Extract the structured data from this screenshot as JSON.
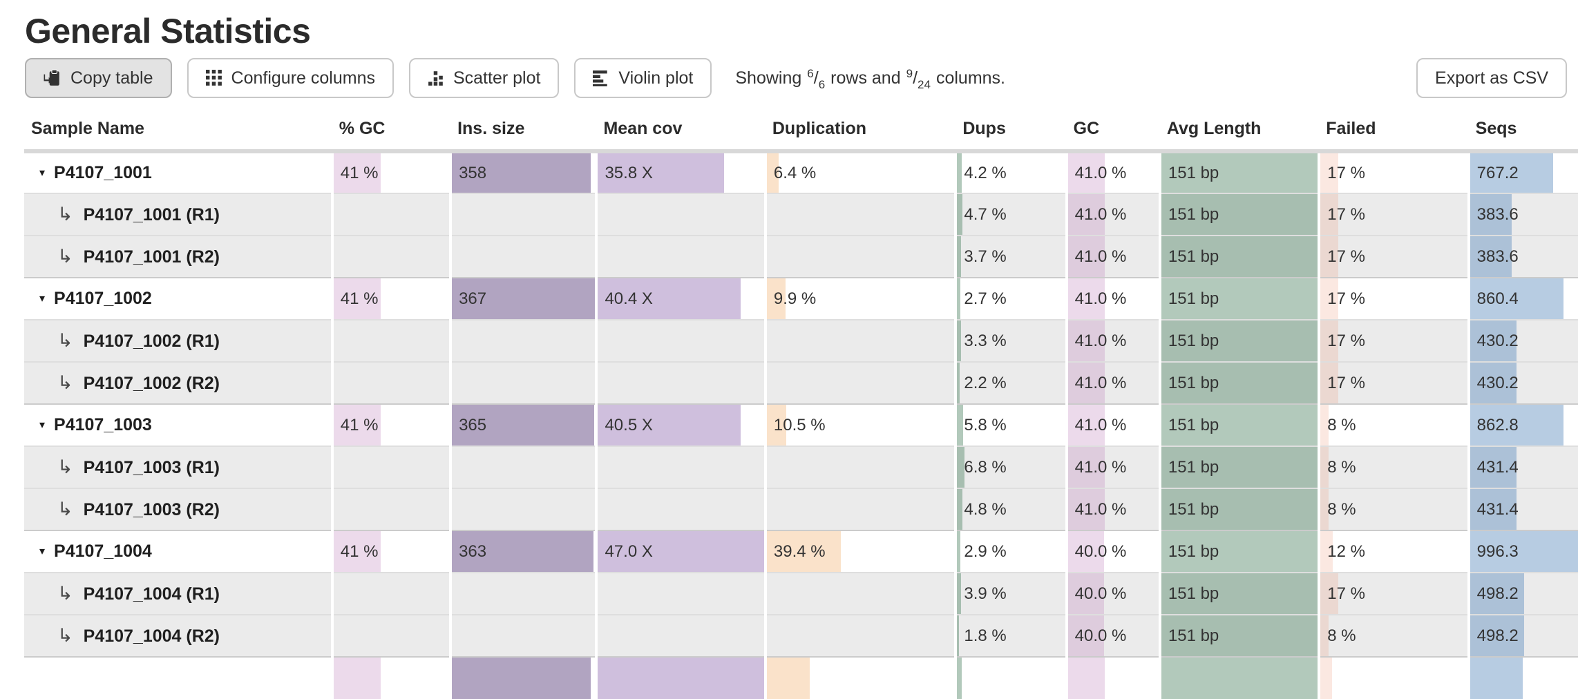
{
  "page": {
    "title": "General Statistics"
  },
  "toolbar": {
    "buttons": [
      {
        "label": "Copy table",
        "icon": "clipboard-icon",
        "active": true
      },
      {
        "label": "Configure columns",
        "icon": "grid-icon",
        "active": false
      },
      {
        "label": "Scatter plot",
        "icon": "scatter-icon",
        "active": false
      },
      {
        "label": "Violin plot",
        "icon": "violin-icon",
        "active": false
      }
    ],
    "showing": {
      "prefix": "Showing",
      "rows_shown": "6",
      "rows_total": "6",
      "between": "rows and",
      "cols_shown": "9",
      "cols_total": "24",
      "suffix": "columns."
    },
    "export_label": "Export as CSV"
  },
  "table": {
    "columns": [
      "Sample Name",
      "% GC",
      "Ins. size",
      "Mean cov",
      "Duplication",
      "Dups",
      "GC",
      "Avg Length",
      "Failed",
      "Seqs"
    ],
    "bar_colors": {
      "gc_pct": "rgba(193,132,190,0.30)",
      "ins_size": "rgba(99,73,131,0.50)",
      "mean_cov": "rgba(135,95,170,0.40)",
      "duplication": "rgba(240,173,103,0.35)",
      "dups": "rgba(84,135,104,0.45)",
      "gc": "rgba(193,132,190,0.30)",
      "avg_length": "rgba(84,135,104,0.45)",
      "failed": "rgba(235,150,120,0.22)",
      "seqs": "rgba(95,142,190,0.45)"
    },
    "rows": [
      {
        "name": "P4107_1001",
        "type": "main",
        "cells": [
          {
            "text": "41 %",
            "bar": 41,
            "color": "gc_pct"
          },
          {
            "text": "358",
            "bar": 97,
            "color": "ins_size"
          },
          {
            "text": "35.8 X",
            "bar": 76,
            "color": "mean_cov"
          },
          {
            "text": "6.4 %",
            "bar": 6.4,
            "color": "duplication"
          },
          {
            "text": "4.2 %",
            "bar": 4.2,
            "color": "dups"
          },
          {
            "text": "41.0 %",
            "bar": 41,
            "color": "gc"
          },
          {
            "text": "151 bp",
            "bar": 100,
            "color": "avg_length"
          },
          {
            "text": "17 %",
            "bar": 12,
            "color": "failed"
          },
          {
            "text": "767.2",
            "bar": 77,
            "color": "seqs"
          }
        ]
      },
      {
        "name": "P4107_1001 (R1)",
        "type": "sub",
        "cells": [
          null,
          null,
          null,
          null,
          {
            "text": "4.7 %",
            "bar": 4.7,
            "color": "dups"
          },
          {
            "text": "41.0 %",
            "bar": 41,
            "color": "gc"
          },
          {
            "text": "151 bp",
            "bar": 100,
            "color": "avg_length"
          },
          {
            "text": "17 %",
            "bar": 12,
            "color": "failed"
          },
          {
            "text": "383.6",
            "bar": 38.5,
            "color": "seqs"
          }
        ]
      },
      {
        "name": "P4107_1001 (R2)",
        "type": "sub",
        "cells": [
          null,
          null,
          null,
          null,
          {
            "text": "3.7 %",
            "bar": 3.7,
            "color": "dups"
          },
          {
            "text": "41.0 %",
            "bar": 41,
            "color": "gc"
          },
          {
            "text": "151 bp",
            "bar": 100,
            "color": "avg_length"
          },
          {
            "text": "17 %",
            "bar": 12,
            "color": "failed"
          },
          {
            "text": "383.6",
            "bar": 38.5,
            "color": "seqs"
          }
        ]
      },
      {
        "name": "P4107_1002",
        "type": "main",
        "cells": [
          {
            "text": "41 %",
            "bar": 41,
            "color": "gc_pct"
          },
          {
            "text": "367",
            "bar": 100,
            "color": "ins_size"
          },
          {
            "text": "40.4 X",
            "bar": 86,
            "color": "mean_cov"
          },
          {
            "text": "9.9 %",
            "bar": 9.9,
            "color": "duplication"
          },
          {
            "text": "2.7 %",
            "bar": 2.7,
            "color": "dups"
          },
          {
            "text": "41.0 %",
            "bar": 41,
            "color": "gc"
          },
          {
            "text": "151 bp",
            "bar": 100,
            "color": "avg_length"
          },
          {
            "text": "17 %",
            "bar": 12,
            "color": "failed"
          },
          {
            "text": "860.4",
            "bar": 86.4,
            "color": "seqs"
          }
        ]
      },
      {
        "name": "P4107_1002 (R1)",
        "type": "sub",
        "cells": [
          null,
          null,
          null,
          null,
          {
            "text": "3.3 %",
            "bar": 3.3,
            "color": "dups"
          },
          {
            "text": "41.0 %",
            "bar": 41,
            "color": "gc"
          },
          {
            "text": "151 bp",
            "bar": 100,
            "color": "avg_length"
          },
          {
            "text": "17 %",
            "bar": 12,
            "color": "failed"
          },
          {
            "text": "430.2",
            "bar": 43.2,
            "color": "seqs"
          }
        ]
      },
      {
        "name": "P4107_1002 (R2)",
        "type": "sub",
        "cells": [
          null,
          null,
          null,
          null,
          {
            "text": "2.2 %",
            "bar": 2.2,
            "color": "dups"
          },
          {
            "text": "41.0 %",
            "bar": 41,
            "color": "gc"
          },
          {
            "text": "151 bp",
            "bar": 100,
            "color": "avg_length"
          },
          {
            "text": "17 %",
            "bar": 12,
            "color": "failed"
          },
          {
            "text": "430.2",
            "bar": 43.2,
            "color": "seqs"
          }
        ]
      },
      {
        "name": "P4107_1003",
        "type": "main",
        "cells": [
          {
            "text": "41 %",
            "bar": 41,
            "color": "gc_pct"
          },
          {
            "text": "365",
            "bar": 99.5,
            "color": "ins_size"
          },
          {
            "text": "40.5 X",
            "bar": 86,
            "color": "mean_cov"
          },
          {
            "text": "10.5 %",
            "bar": 10.5,
            "color": "duplication"
          },
          {
            "text": "5.8 %",
            "bar": 5.8,
            "color": "dups"
          },
          {
            "text": "41.0 %",
            "bar": 41,
            "color": "gc"
          },
          {
            "text": "151 bp",
            "bar": 100,
            "color": "avg_length"
          },
          {
            "text": "8 %",
            "bar": 5.5,
            "color": "failed"
          },
          {
            "text": "862.8",
            "bar": 86.6,
            "color": "seqs"
          }
        ]
      },
      {
        "name": "P4107_1003 (R1)",
        "type": "sub",
        "cells": [
          null,
          null,
          null,
          null,
          {
            "text": "6.8 %",
            "bar": 6.8,
            "color": "dups"
          },
          {
            "text": "41.0 %",
            "bar": 41,
            "color": "gc"
          },
          {
            "text": "151 bp",
            "bar": 100,
            "color": "avg_length"
          },
          {
            "text": "8 %",
            "bar": 5.5,
            "color": "failed"
          },
          {
            "text": "431.4",
            "bar": 43.3,
            "color": "seqs"
          }
        ]
      },
      {
        "name": "P4107_1003 (R2)",
        "type": "sub",
        "cells": [
          null,
          null,
          null,
          null,
          {
            "text": "4.8 %",
            "bar": 4.8,
            "color": "dups"
          },
          {
            "text": "41.0 %",
            "bar": 41,
            "color": "gc"
          },
          {
            "text": "151 bp",
            "bar": 100,
            "color": "avg_length"
          },
          {
            "text": "8 %",
            "bar": 5.5,
            "color": "failed"
          },
          {
            "text": "431.4",
            "bar": 43.3,
            "color": "seqs"
          }
        ]
      },
      {
        "name": "P4107_1004",
        "type": "main",
        "cells": [
          {
            "text": "41 %",
            "bar": 41,
            "color": "gc_pct"
          },
          {
            "text": "363",
            "bar": 99,
            "color": "ins_size"
          },
          {
            "text": "47.0 X",
            "bar": 100,
            "color": "mean_cov"
          },
          {
            "text": "39.4 %",
            "bar": 39.4,
            "color": "duplication"
          },
          {
            "text": "2.9 %",
            "bar": 2.9,
            "color": "dups"
          },
          {
            "text": "40.0 %",
            "bar": 40,
            "color": "gc"
          },
          {
            "text": "151 bp",
            "bar": 100,
            "color": "avg_length"
          },
          {
            "text": "12 %",
            "bar": 8.3,
            "color": "failed"
          },
          {
            "text": "996.3",
            "bar": 100,
            "color": "seqs"
          }
        ]
      },
      {
        "name": "P4107_1004 (R1)",
        "type": "sub",
        "cells": [
          null,
          null,
          null,
          null,
          {
            "text": "3.9 %",
            "bar": 3.9,
            "color": "dups"
          },
          {
            "text": "40.0 %",
            "bar": 40,
            "color": "gc"
          },
          {
            "text": "151 bp",
            "bar": 100,
            "color": "avg_length"
          },
          {
            "text": "17 %",
            "bar": 12,
            "color": "failed"
          },
          {
            "text": "498.2",
            "bar": 50,
            "color": "seqs"
          }
        ]
      },
      {
        "name": "P4107_1004 (R2)",
        "type": "sub",
        "cells": [
          null,
          null,
          null,
          null,
          {
            "text": "1.8 %",
            "bar": 1.8,
            "color": "dups"
          },
          {
            "text": "40.0 %",
            "bar": 40,
            "color": "gc"
          },
          {
            "text": "151 bp",
            "bar": 100,
            "color": "avg_length"
          },
          {
            "text": "8 %",
            "bar": 5.5,
            "color": "failed"
          },
          {
            "text": "498.2",
            "bar": 50,
            "color": "seqs"
          }
        ]
      },
      {
        "name": "",
        "type": "partial",
        "cells": [
          {
            "text": "",
            "bar": 41,
            "color": "gc_pct"
          },
          {
            "text": "",
            "bar": 97,
            "color": "ins_size"
          },
          {
            "text": "",
            "bar": 100,
            "color": "mean_cov"
          },
          {
            "text": "",
            "bar": 23,
            "color": "duplication"
          },
          {
            "text": "",
            "bar": 4,
            "color": "dups"
          },
          {
            "text": "",
            "bar": 41,
            "color": "gc"
          },
          {
            "text": "",
            "bar": 100,
            "color": "avg_length"
          },
          {
            "text": "",
            "bar": 8,
            "color": "failed"
          },
          {
            "text": "",
            "bar": 49,
            "color": "seqs"
          }
        ]
      }
    ]
  }
}
